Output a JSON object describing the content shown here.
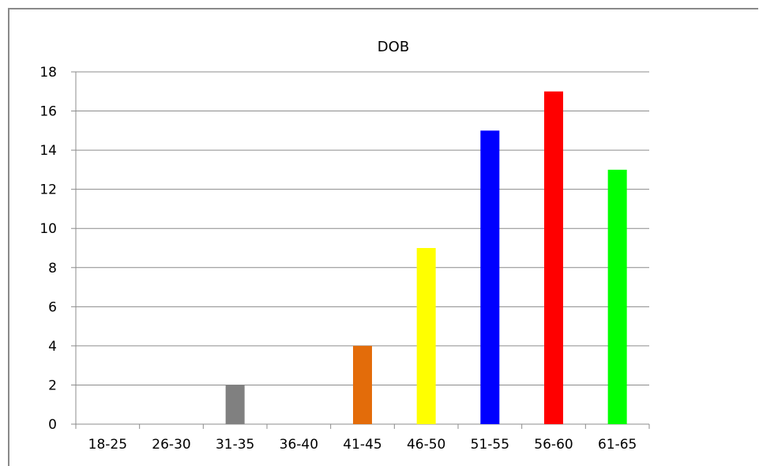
{
  "chart_data": {
    "type": "bar",
    "title": "DOB",
    "xlabel": "",
    "ylabel": "",
    "categories": [
      "18-25",
      "26-30",
      "31-35",
      "36-40",
      "41-45",
      "46-50",
      "51-55",
      "56-60",
      "61-65"
    ],
    "values": [
      0,
      0,
      2,
      0,
      4,
      9,
      15,
      17,
      13
    ],
    "colors": [
      "#808080",
      "#808080",
      "#808080",
      "#e36c0a",
      "#e36c0a",
      "#ffff00",
      "#0000ff",
      "#ff0000",
      "#00ff00"
    ],
    "ylim": [
      0,
      18
    ],
    "yticks": [
      0,
      2,
      4,
      6,
      8,
      10,
      12,
      14,
      16,
      18
    ],
    "grid": true,
    "legend": "none"
  }
}
